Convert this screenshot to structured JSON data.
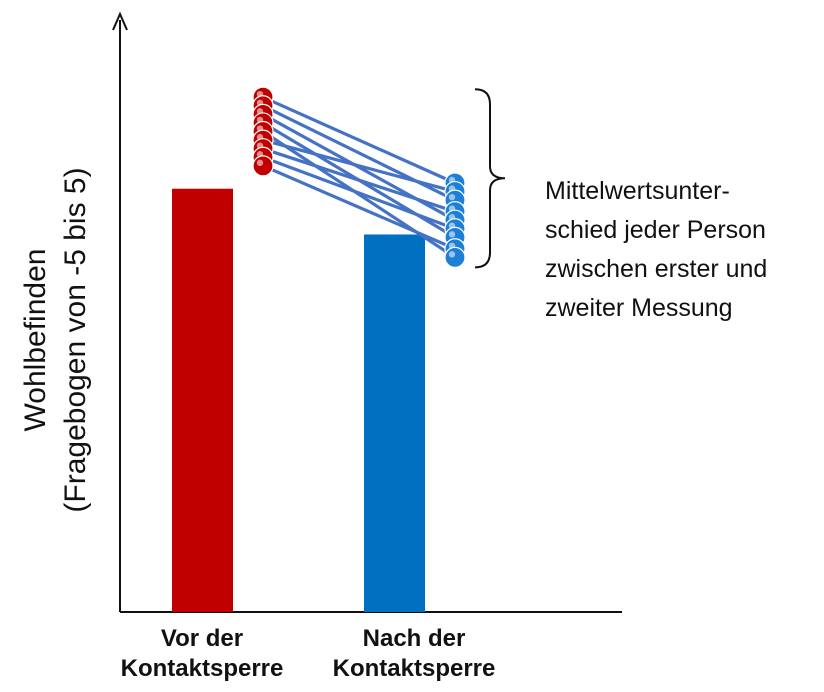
{
  "chart_data": {
    "type": "bar",
    "title": "",
    "ylabel": {
      "line1": "Wohlbefinden",
      "line2": "(Fragebogen von -5 bis 5)"
    },
    "ylim": [
      -5,
      5
    ],
    "categories": [
      {
        "line1": "Vor der",
        "line2": "Kontaktsperre"
      },
      {
        "line1": "Nach der",
        "line2": "Kontaktsperre"
      }
    ],
    "values": [
      2.4,
      1.6
    ],
    "colors": [
      "#c00000",
      "#0070c0"
    ],
    "paired_individuals": {
      "before": [
        4.0,
        3.85,
        3.7,
        3.55,
        3.4,
        3.25,
        3.1,
        2.95,
        2.8
      ],
      "after": [
        2.5,
        2.35,
        2.2,
        2.0,
        1.85,
        1.7,
        1.55,
        1.35,
        1.2
      ],
      "line_color": "#4472c4",
      "before_point_color": "#c00000",
      "after_point_color": "#1e7fd6"
    },
    "annotation": [
      "Mittelwertsunter-",
      "schied jeder Person",
      "zwischen erster und",
      "zweiter Messung"
    ],
    "grid": false,
    "legend": "none"
  }
}
